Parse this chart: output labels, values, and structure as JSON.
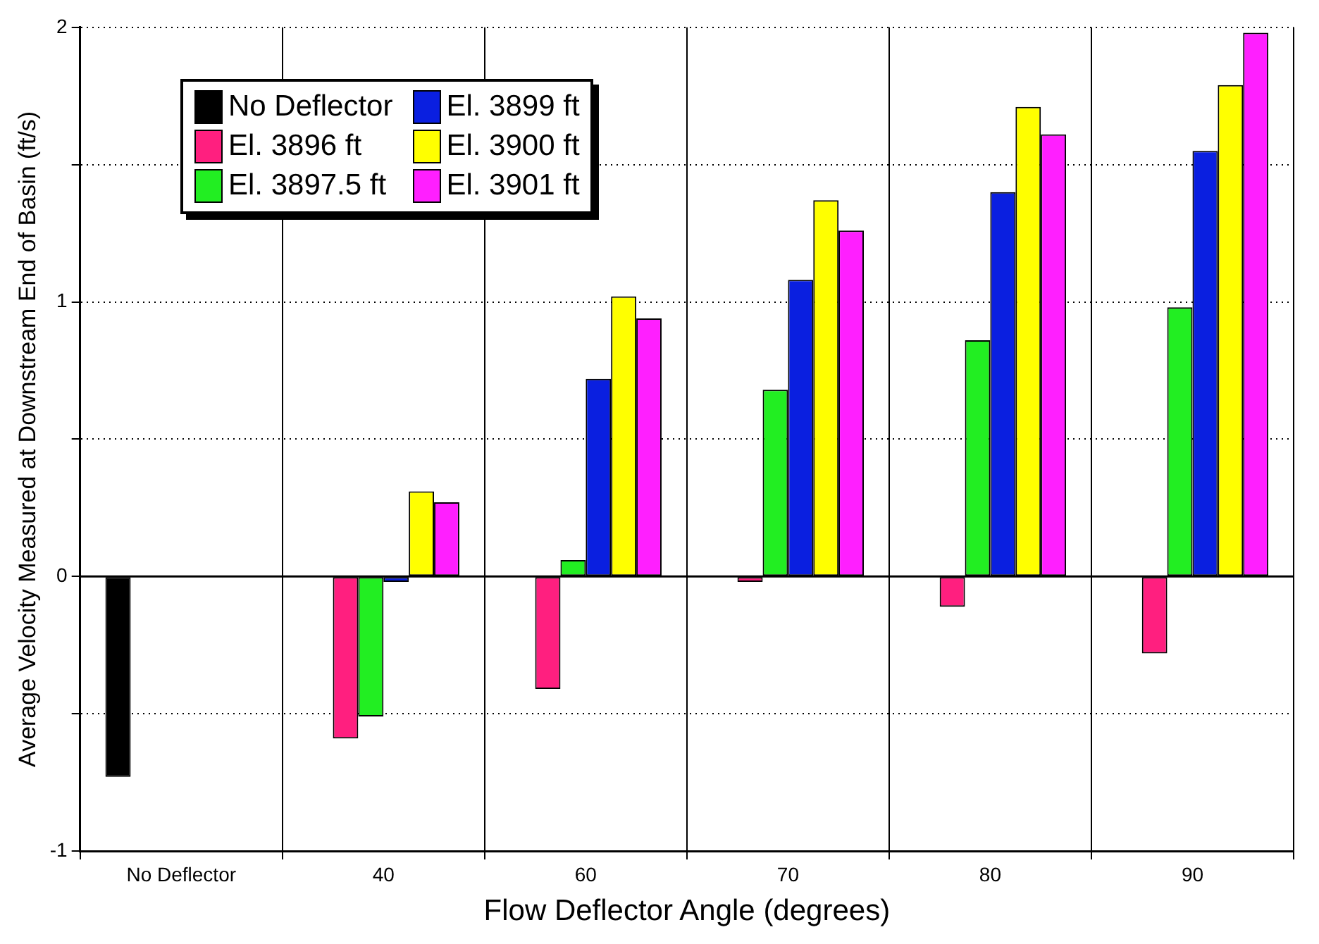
{
  "chart_data": {
    "type": "bar",
    "xlabel": "Flow Deflector Angle (degrees)",
    "ylabel": "Average Velocity Measured at Downstream End of Basin (ft/s)",
    "categories": [
      "No Deflector",
      "40",
      "60",
      "70",
      "80",
      "90"
    ],
    "series": [
      {
        "name": "No Deflector",
        "color": "#000000",
        "values": [
          -0.73,
          null,
          null,
          null,
          null,
          null
        ]
      },
      {
        "name": "El. 3896 ft",
        "color": "#ff1f7f",
        "values": [
          null,
          -0.59,
          -0.41,
          -0.02,
          -0.11,
          -0.28
        ]
      },
      {
        "name": "El. 3897.5 ft",
        "color": "#22ee22",
        "values": [
          null,
          -0.51,
          0.06,
          0.68,
          0.86,
          0.98
        ]
      },
      {
        "name": "El. 3899 ft",
        "color": "#0a1fe0",
        "values": [
          null,
          -0.02,
          0.72,
          1.08,
          1.4,
          1.55
        ]
      },
      {
        "name": "El. 3900 ft",
        "color": "#ffff00",
        "values": [
          null,
          0.31,
          1.02,
          1.37,
          1.71,
          1.79
        ]
      },
      {
        "name": "El. 3901 ft",
        "color": "#ff1fff",
        "values": [
          null,
          0.27,
          0.94,
          1.26,
          1.61,
          1.98
        ]
      }
    ],
    "ylim": [
      -1,
      2
    ],
    "yticks": [
      -1,
      {
        "value": -0.5,
        "label": null
      },
      0,
      {
        "value": 0.5,
        "label": null
      },
      1,
      {
        "value": 1.5,
        "label": null
      },
      2
    ],
    "grid": true,
    "legend": "top left"
  }
}
